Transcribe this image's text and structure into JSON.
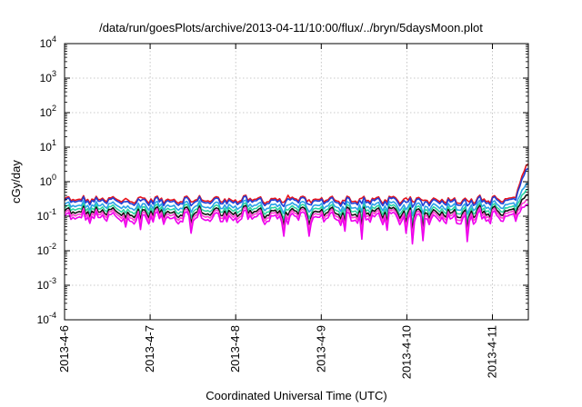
{
  "chart_data": {
    "type": "line",
    "title": "/data/run/goesPlots/archive/2013-04-11/10:00/flux/../bryn/5daysMoon.plot",
    "xlabel": "Coordinated Universal Time (UTC)",
    "ylabel": "cGy/day",
    "yscale": "log",
    "ylim": [
      0.0001,
      10000
    ],
    "xlim_days": [
      0,
      5.42
    ],
    "x_ticks": [
      {
        "label": "2013-4-6",
        "day": 0
      },
      {
        "label": "2013-4-7",
        "day": 1
      },
      {
        "label": "2013-4-8",
        "day": 2
      },
      {
        "label": "2013-4-9",
        "day": 3
      },
      {
        "label": "2013-4-10",
        "day": 4
      },
      {
        "label": "2013-4-11",
        "day": 5
      }
    ],
    "y_ticks": [
      {
        "base": "10",
        "exp": "-4",
        "value": 0.0001
      },
      {
        "base": "10",
        "exp": "-3",
        "value": 0.001
      },
      {
        "base": "10",
        "exp": "-2",
        "value": 0.01
      },
      {
        "base": "10",
        "exp": "-1",
        "value": 0.1
      },
      {
        "base": "10",
        "exp": "0",
        "value": 1
      },
      {
        "base": "10",
        "exp": "1",
        "value": 10
      },
      {
        "base": "10",
        "exp": "2",
        "value": 100
      },
      {
        "base": "10",
        "exp": "3",
        "value": 1000
      },
      {
        "base": "10",
        "exp": "4",
        "value": 10000
      }
    ],
    "grid": true,
    "series": [
      {
        "color": "#e8141b",
        "baseline": 0.3,
        "end_value": 3.2
      },
      {
        "color": "#1f3fd6",
        "baseline": 0.27,
        "end_value": 2.4
      },
      {
        "color": "#29a0e8",
        "baseline": 0.2,
        "end_value": 0.9
      },
      {
        "color": "#2bd4a0",
        "baseline": 0.16,
        "end_value": 0.6
      },
      {
        "color": "#111111",
        "baseline": 0.13,
        "end_value": 0.42
      },
      {
        "color": "#ff3fd0",
        "baseline": 0.11,
        "end_value": 0.3
      },
      {
        "color": "#ee00ee",
        "baseline": 0.09,
        "end_value": 0.22
      }
    ]
  }
}
